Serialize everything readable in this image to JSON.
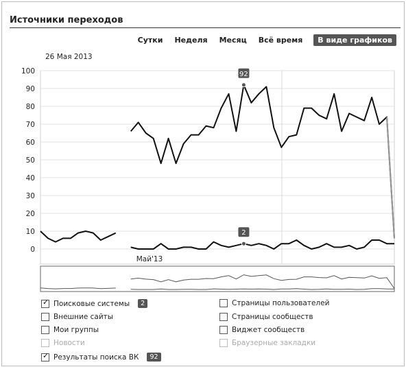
{
  "header": {
    "title": "Источники переходов"
  },
  "tabs": [
    {
      "label": "Сутки",
      "active": false
    },
    {
      "label": "Неделя",
      "active": false
    },
    {
      "label": "Месяц",
      "active": false
    },
    {
      "label": "Всё время",
      "active": false
    },
    {
      "label": "В виде графиков",
      "active": true
    }
  ],
  "date_label": "26 Мая 2013",
  "chart_data": {
    "type": "line",
    "yticks": [
      100,
      90,
      80,
      70,
      60,
      50,
      40,
      30,
      20,
      10,
      0
    ],
    "ylim": [
      0,
      100
    ],
    "x_tick_label": "Май'13",
    "series": [
      {
        "name": "Поисковые системы",
        "values": [
          null,
          null,
          null,
          null,
          null,
          null,
          null,
          null,
          null,
          null,
          null,
          null,
          1,
          0,
          0,
          0,
          3,
          0,
          0,
          1,
          1,
          0,
          0,
          4,
          2,
          1,
          2,
          3,
          2,
          3,
          2,
          0,
          3,
          3,
          5,
          2,
          0,
          1,
          3,
          1,
          1,
          2,
          0,
          1,
          5,
          5,
          3,
          3
        ]
      },
      {
        "name": "Результаты поиска ВК",
        "values": [
          10,
          6,
          4,
          6,
          6,
          9,
          10,
          9,
          5,
          7,
          9,
          null,
          66,
          71,
          65,
          62,
          48,
          62,
          48,
          59,
          64,
          64,
          69,
          68,
          79,
          87,
          66,
          92,
          82,
          87,
          91,
          68,
          57,
          63,
          64,
          79,
          79,
          75,
          73,
          87,
          66,
          76,
          74,
          72,
          85,
          70,
          74,
          6
        ]
      }
    ],
    "markers": [
      {
        "series": "Результаты поиска ВК",
        "label": "92"
      },
      {
        "series": "Поисковые системы",
        "label": "2"
      }
    ],
    "colors": {
      "line": "#111111",
      "grid": "#e2e2e2",
      "overview": "#555555"
    }
  },
  "legend": [
    {
      "label": "Поисковые системы",
      "checked": true,
      "disabled": false,
      "badge": "2"
    },
    {
      "label": "Внешние сайты",
      "checked": false,
      "disabled": false
    },
    {
      "label": "Мои группы",
      "checked": false,
      "disabled": false
    },
    {
      "label": "Новости",
      "checked": false,
      "disabled": true
    },
    {
      "label": "Результаты поиска ВК",
      "checked": true,
      "disabled": false,
      "badge": "92"
    },
    {
      "label": "Страницы пользователей",
      "checked": false,
      "disabled": false
    },
    {
      "label": "Страницы сообществ",
      "checked": false,
      "disabled": false
    },
    {
      "label": "Виджет сообществ",
      "checked": false,
      "disabled": false
    },
    {
      "label": "Браузерные закладки",
      "checked": false,
      "disabled": true
    }
  ]
}
